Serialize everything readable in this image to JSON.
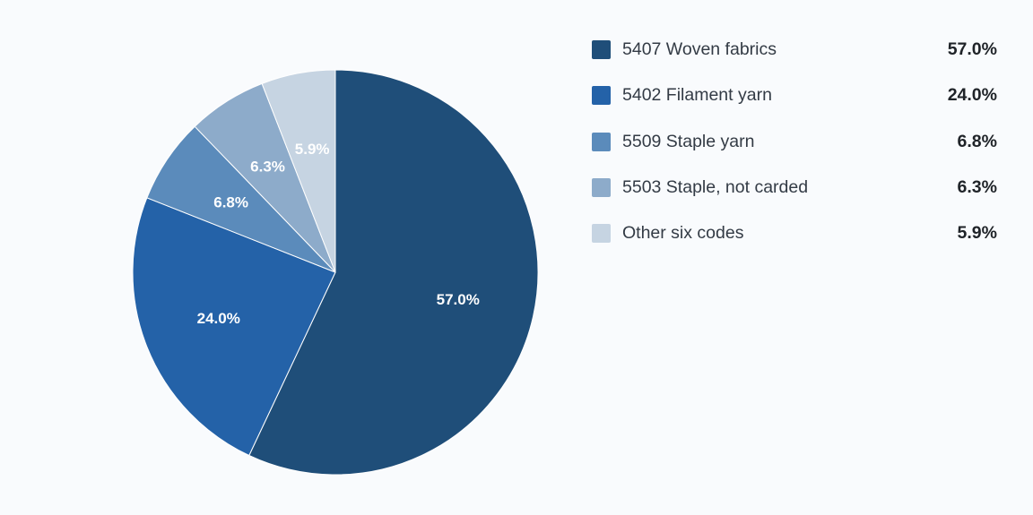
{
  "chart_data": {
    "type": "pie",
    "title": "",
    "slices": [
      {
        "name": "5407 Woven fabrics",
        "value": 57.0,
        "label": "57.0%",
        "color": "#1f4e79"
      },
      {
        "name": "5402 Filament yarn",
        "value": 24.0,
        "label": "24.0%",
        "color": "#2462a8"
      },
      {
        "name": "5509 Staple yarn",
        "value": 6.8,
        "label": "6.8%",
        "color": "#5b8bbb"
      },
      {
        "name": "5503 Staple, not carded",
        "value": 6.3,
        "label": "6.3%",
        "color": "#8dabca"
      },
      {
        "name": "Other six codes",
        "value": 5.9,
        "label": "5.9%",
        "color": "#c6d4e2"
      }
    ],
    "legend_position": "right"
  }
}
